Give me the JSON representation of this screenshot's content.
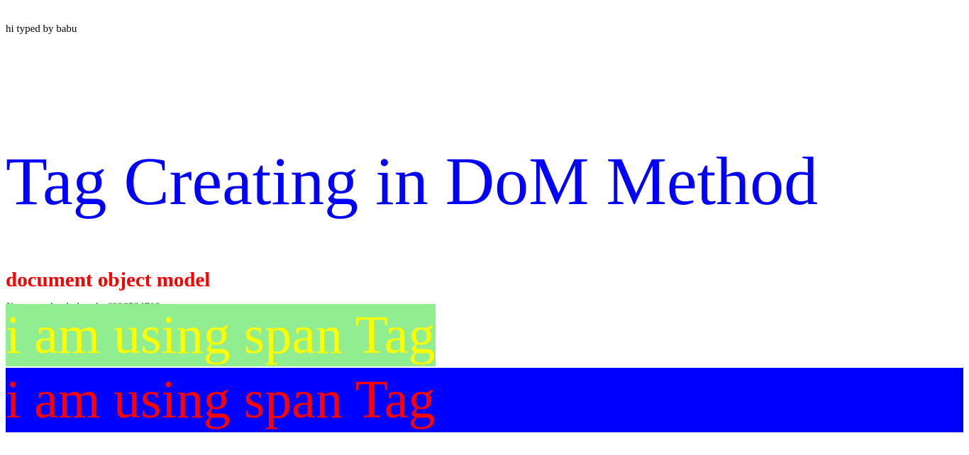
{
  "typed_text": "hi typed by babu",
  "heading": "Tag Creating in DoM Method",
  "subheading": "document object model",
  "contact_line": "Name: mohanbabu ph: 6398524712",
  "span_green": {
    "text": "i am using span Tag",
    "text_color": "#ffff00",
    "background": "#90ee90"
  },
  "span_blue": {
    "text": "i am using span Tag",
    "text_color": "#ff0000",
    "background": "#0000ff"
  },
  "colors": {
    "heading": "#0000ff",
    "subheading": "#ff0000",
    "contact": "#008000"
  }
}
